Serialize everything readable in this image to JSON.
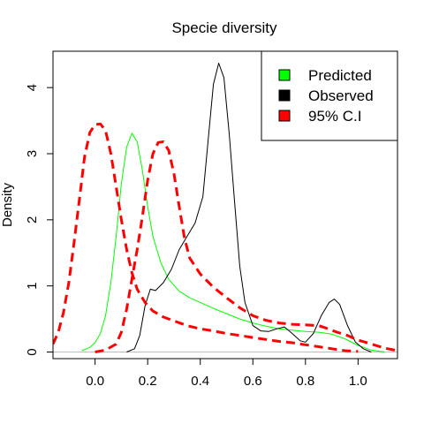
{
  "chart_data": {
    "type": "line",
    "title": "Specie diversity",
    "xlabel": "",
    "ylabel": "Density",
    "xlim": [
      -0.16,
      1.15
    ],
    "ylim": [
      -0.1,
      4.55
    ],
    "grid": false,
    "legend_position": "top-right",
    "xticks": [
      {
        "value": 0.0,
        "label": "0.0"
      },
      {
        "value": 0.2,
        "label": "0.2"
      },
      {
        "value": 0.4,
        "label": "0.4"
      },
      {
        "value": 0.6,
        "label": "0.6"
      },
      {
        "value": 0.8,
        "label": "0.8"
      },
      {
        "value": 1.0,
        "label": "1.0"
      }
    ],
    "yticks": [
      {
        "value": 0,
        "label": "0"
      },
      {
        "value": 1,
        "label": "1"
      },
      {
        "value": 2,
        "label": "2"
      },
      {
        "value": 3,
        "label": "3"
      },
      {
        "value": 4,
        "label": "4"
      }
    ],
    "baseline": {
      "y": 0,
      "color": "#bebebe"
    },
    "legend": [
      {
        "label": "Predicted",
        "color": "#00ff00"
      },
      {
        "label": "Observed",
        "color": "#000000"
      },
      {
        "label": "95% C.I",
        "color": "#ff0000"
      }
    ],
    "series": [
      {
        "name": "Predicted",
        "color": "#00ff00",
        "dash": "solid",
        "points": [
          [
            -0.05,
            0.02
          ],
          [
            -0.02,
            0.07
          ],
          [
            0.0,
            0.14
          ],
          [
            0.02,
            0.28
          ],
          [
            0.04,
            0.55
          ],
          [
            0.06,
            1.05
          ],
          [
            0.08,
            1.75
          ],
          [
            0.1,
            2.55
          ],
          [
            0.12,
            3.1
          ],
          [
            0.14,
            3.31
          ],
          [
            0.16,
            3.18
          ],
          [
            0.18,
            2.75
          ],
          [
            0.2,
            2.2
          ],
          [
            0.22,
            1.75
          ],
          [
            0.25,
            1.35
          ],
          [
            0.28,
            1.1
          ],
          [
            0.32,
            0.92
          ],
          [
            0.36,
            0.82
          ],
          [
            0.4,
            0.75
          ],
          [
            0.45,
            0.66
          ],
          [
            0.5,
            0.58
          ],
          [
            0.55,
            0.5
          ],
          [
            0.6,
            0.44
          ],
          [
            0.65,
            0.39
          ],
          [
            0.7,
            0.35
          ],
          [
            0.75,
            0.33
          ],
          [
            0.8,
            0.31
          ],
          [
            0.85,
            0.3
          ],
          [
            0.9,
            0.27
          ],
          [
            0.95,
            0.2
          ],
          [
            1.0,
            0.1
          ],
          [
            1.05,
            0.03
          ],
          [
            1.1,
            0.0
          ]
        ]
      },
      {
        "name": "Observed",
        "color": "#000000",
        "dash": "solid",
        "points": [
          [
            0.12,
            0.0
          ],
          [
            0.15,
            0.05
          ],
          [
            0.17,
            0.25
          ],
          [
            0.19,
            0.7
          ],
          [
            0.21,
            0.95
          ],
          [
            0.23,
            0.93
          ],
          [
            0.26,
            1.05
          ],
          [
            0.29,
            1.25
          ],
          [
            0.32,
            1.55
          ],
          [
            0.35,
            1.75
          ],
          [
            0.38,
            1.95
          ],
          [
            0.41,
            2.35
          ],
          [
            0.43,
            3.2
          ],
          [
            0.45,
            4.05
          ],
          [
            0.47,
            4.37
          ],
          [
            0.49,
            4.15
          ],
          [
            0.51,
            3.3
          ],
          [
            0.53,
            2.3
          ],
          [
            0.55,
            1.3
          ],
          [
            0.57,
            0.75
          ],
          [
            0.6,
            0.4
          ],
          [
            0.63,
            0.32
          ],
          [
            0.66,
            0.31
          ],
          [
            0.69,
            0.35
          ],
          [
            0.72,
            0.38
          ],
          [
            0.75,
            0.28
          ],
          [
            0.78,
            0.17
          ],
          [
            0.8,
            0.15
          ],
          [
            0.83,
            0.28
          ],
          [
            0.86,
            0.55
          ],
          [
            0.89,
            0.75
          ],
          [
            0.91,
            0.8
          ],
          [
            0.93,
            0.72
          ],
          [
            0.96,
            0.4
          ],
          [
            0.99,
            0.15
          ],
          [
            1.02,
            0.05
          ],
          [
            1.05,
            0.0
          ]
        ]
      },
      {
        "name": "95% C.I (lower)",
        "color": "#ff0000",
        "dash": "dashed",
        "points": [
          [
            -0.16,
            0.12
          ],
          [
            -0.14,
            0.3
          ],
          [
            -0.12,
            0.6
          ],
          [
            -0.1,
            1.05
          ],
          [
            -0.08,
            1.65
          ],
          [
            -0.06,
            2.3
          ],
          [
            -0.04,
            2.95
          ],
          [
            -0.02,
            3.32
          ],
          [
            0.0,
            3.44
          ],
          [
            0.02,
            3.45
          ],
          [
            0.04,
            3.35
          ],
          [
            0.06,
            3.0
          ],
          [
            0.08,
            2.5
          ],
          [
            0.1,
            2.0
          ],
          [
            0.12,
            1.55
          ],
          [
            0.14,
            1.2
          ],
          [
            0.16,
            0.95
          ],
          [
            0.19,
            0.75
          ],
          [
            0.22,
            0.62
          ],
          [
            0.26,
            0.53
          ],
          [
            0.3,
            0.47
          ],
          [
            0.35,
            0.4
          ],
          [
            0.4,
            0.35
          ],
          [
            0.45,
            0.32
          ],
          [
            0.5,
            0.28
          ],
          [
            0.55,
            0.25
          ],
          [
            0.6,
            0.22
          ],
          [
            0.65,
            0.19
          ],
          [
            0.7,
            0.16
          ],
          [
            0.75,
            0.14
          ],
          [
            0.8,
            0.11
          ],
          [
            0.85,
            0.08
          ],
          [
            0.9,
            0.05
          ],
          [
            0.95,
            0.02
          ],
          [
            1.0,
            0.01
          ]
        ]
      },
      {
        "name": "95% C.I (upper)",
        "color": "#ff0000",
        "dash": "dashed",
        "points": [
          [
            0.0,
            0.0
          ],
          [
            0.04,
            0.03
          ],
          [
            0.08,
            0.12
          ],
          [
            0.1,
            0.3
          ],
          [
            0.12,
            0.65
          ],
          [
            0.14,
            1.1
          ],
          [
            0.16,
            1.55
          ],
          [
            0.18,
            2.05
          ],
          [
            0.2,
            2.6
          ],
          [
            0.22,
            3.0
          ],
          [
            0.24,
            3.17
          ],
          [
            0.26,
            3.18
          ],
          [
            0.28,
            3.05
          ],
          [
            0.3,
            2.7
          ],
          [
            0.32,
            2.2
          ],
          [
            0.34,
            1.72
          ],
          [
            0.36,
            1.42
          ],
          [
            0.4,
            1.18
          ],
          [
            0.45,
            0.98
          ],
          [
            0.5,
            0.82
          ],
          [
            0.55,
            0.67
          ],
          [
            0.6,
            0.55
          ],
          [
            0.65,
            0.48
          ],
          [
            0.7,
            0.44
          ],
          [
            0.75,
            0.42
          ],
          [
            0.8,
            0.41
          ],
          [
            0.85,
            0.4
          ],
          [
            0.88,
            0.36
          ],
          [
            0.92,
            0.3
          ],
          [
            0.96,
            0.25
          ],
          [
            1.0,
            0.18
          ],
          [
            1.05,
            0.12
          ],
          [
            1.1,
            0.06
          ],
          [
            1.15,
            0.02
          ]
        ]
      }
    ]
  }
}
